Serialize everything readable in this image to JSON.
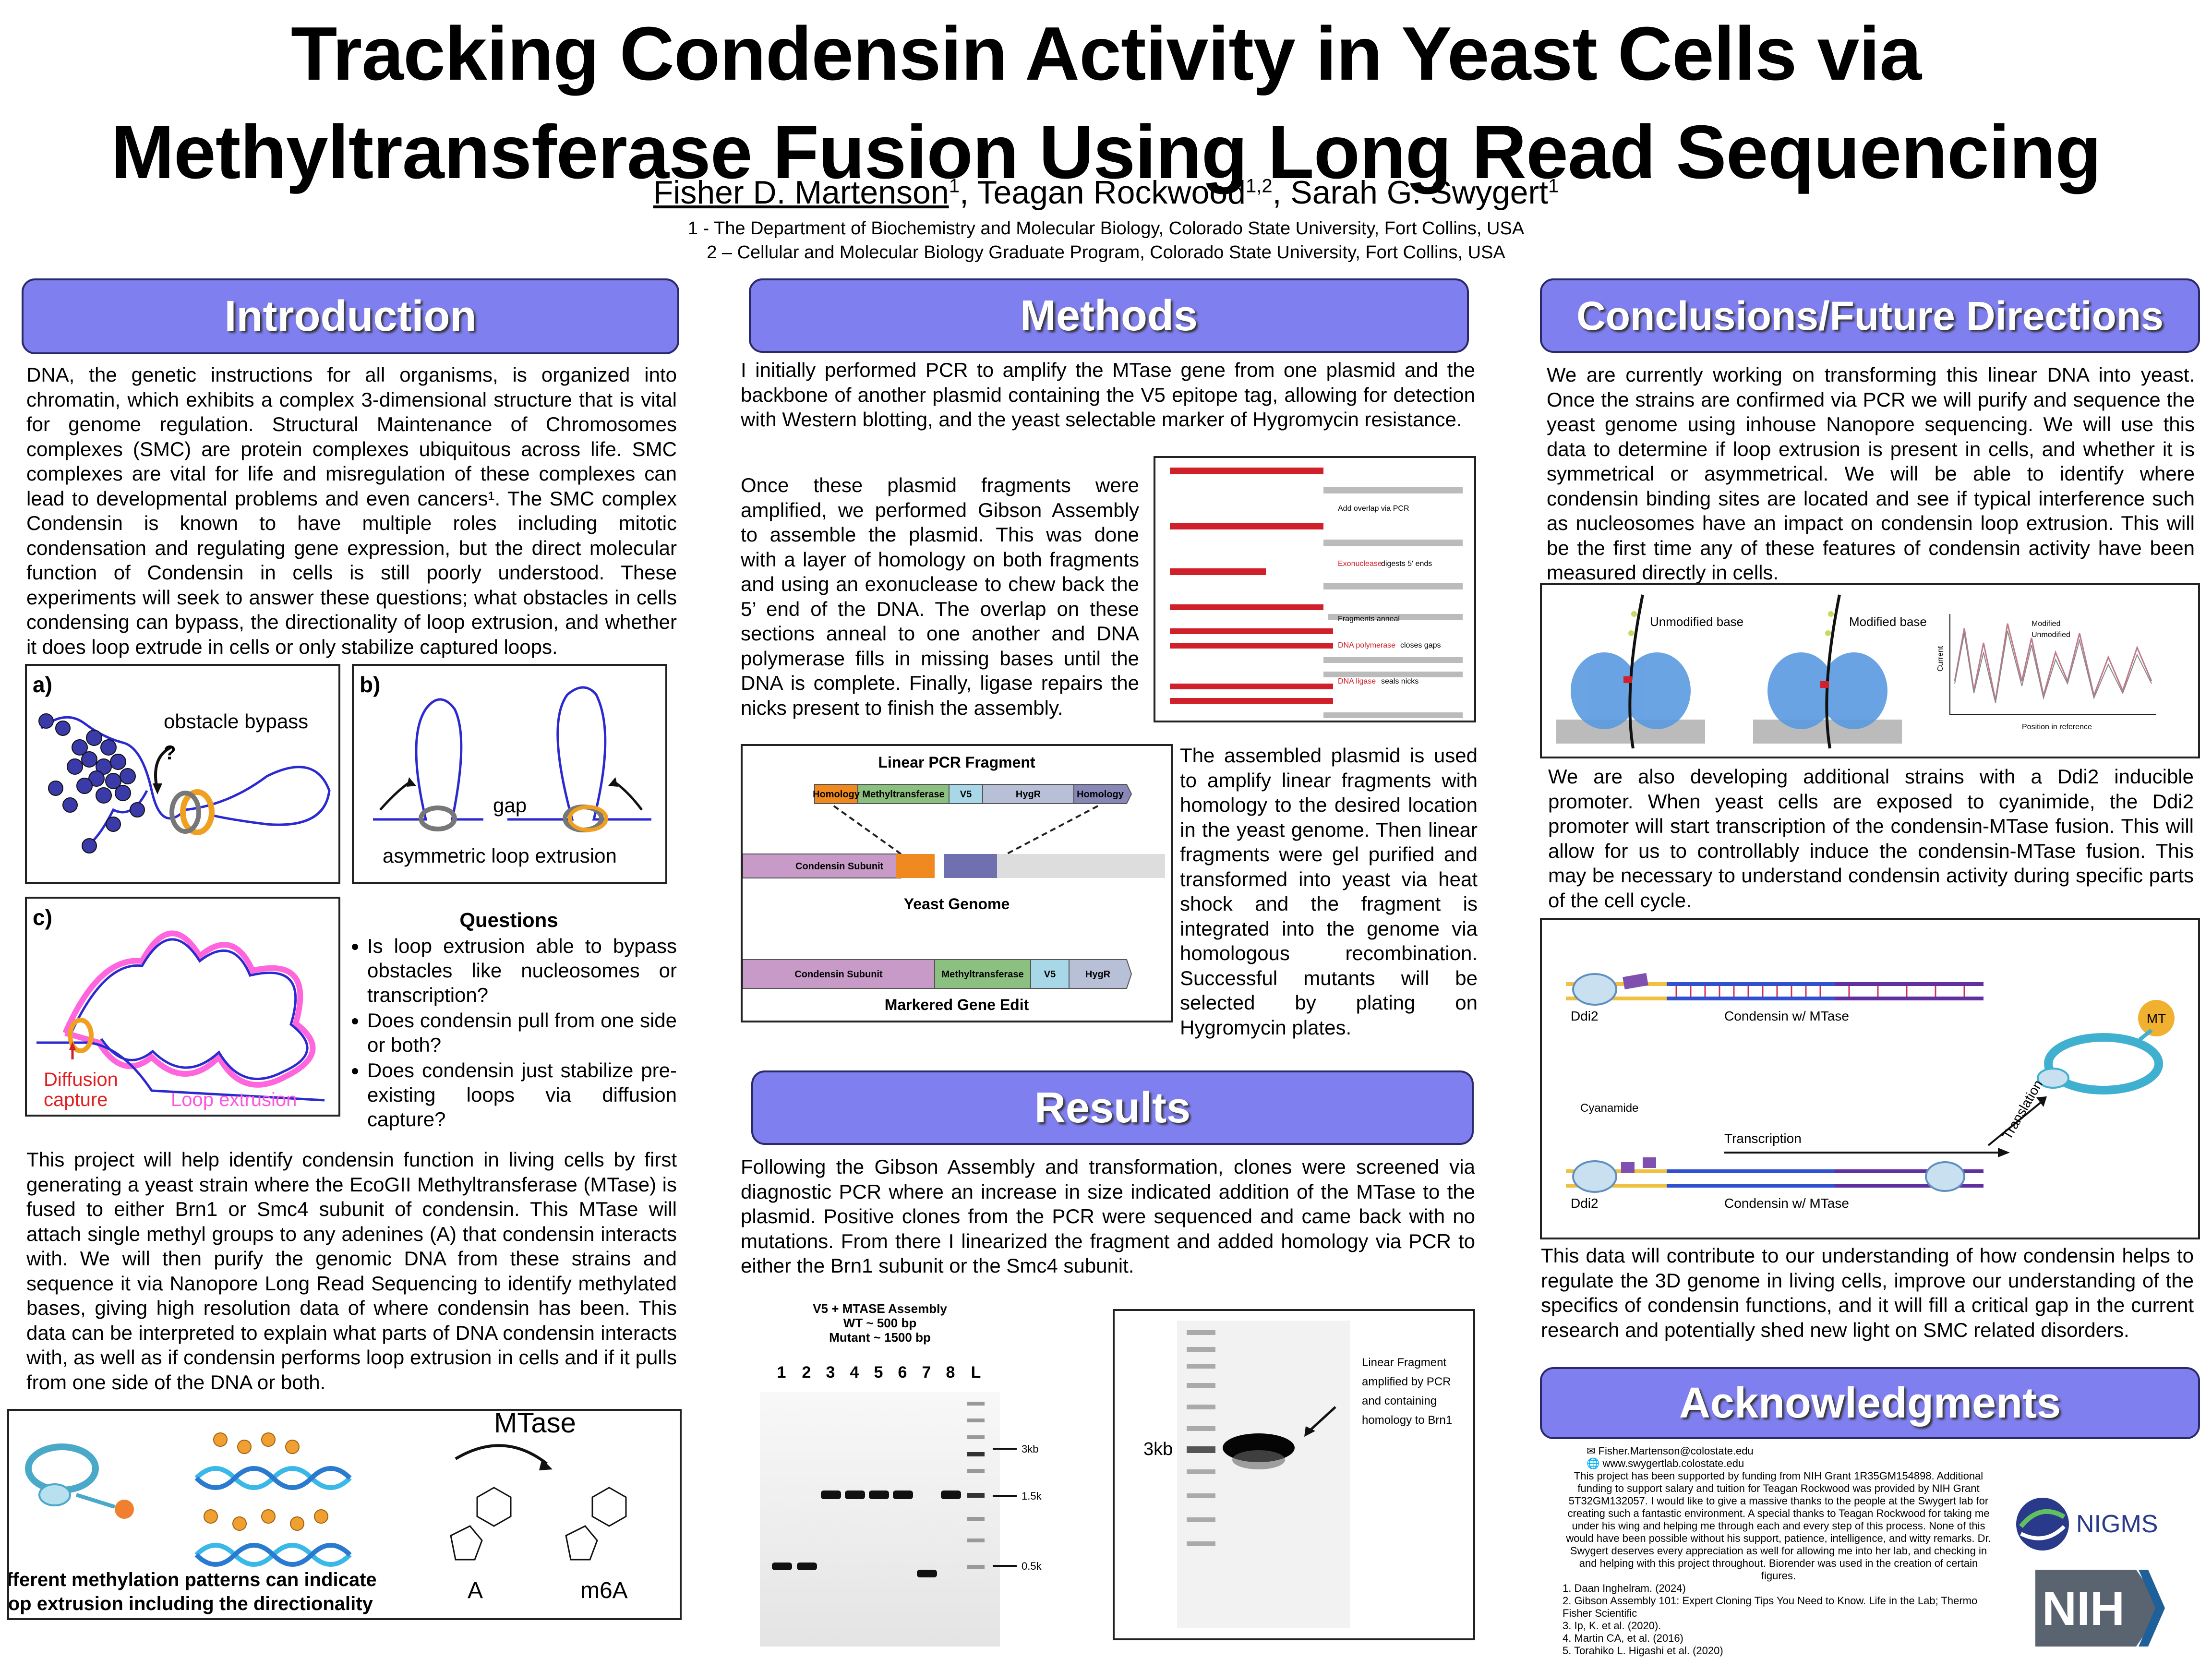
{
  "title_line1": "Tracking Condensin Activity in Yeast Cells via",
  "title_line2": "Methyltransferase Fusion Using Long Read Sequencing",
  "authors": {
    "a1": "Fisher D. Martenson",
    "a1_sup": "1",
    "a2": ", Teagan Rockwood",
    "a2_sup": "1,2",
    "a3": ", Sarah G. Swygert",
    "a3_sup": "1"
  },
  "affil1": "1 - The Department of Biochemistry and Molecular Biology, Colorado State University, Fort Collins, USA",
  "affil2": "2 – Cellular and Molecular Biology Graduate Program, Colorado State University, Fort Collins, USA",
  "intro": {
    "heading": "Introduction",
    "p1": "DNA, the genetic instructions for all organisms, is organized into chromatin, which exhibits a complex 3-dimensional structure that is vital for genome regulation. Structural Maintenance of Chromosomes complexes (SMC) are protein complexes ubiquitous across life. SMC complexes are vital for life and misregulation of these complexes can lead to developmental problems and even cancers¹. The SMC complex Condensin is known to have multiple roles including mitotic condensation and regulating gene expression, but the direct molecular function of Condensin in cells is still poorly understood. These experiments will seek to answer these questions; what obstacles in cells condensing can bypass, the directionality of loop extrusion, and whether it does loop extrude in cells or only stabilize captured loops.",
    "fig_a_label": "a)",
    "fig_a_text": "obstacle bypass",
    "fig_a_q": "?",
    "fig_b_label": "b)",
    "fig_b_gap": "gap",
    "fig_b_text": "asymmetric loop extrusion",
    "fig_c_label": "c)",
    "fig_c_diff1": "Diffusion",
    "fig_c_diff2": "capture",
    "fig_c_loop": "Loop extrusion",
    "questions_title": "Questions",
    "questions": [
      "Is loop extrusion able to bypass obstacles like nucleosomes or transcription?",
      "Does condensin pull from one side or both?",
      "Does condensin just stabilize pre-existing loops via diffusion capture?"
    ],
    "p2": "This project will help identify condensin function in living cells by first generating a yeast strain where the EcoGII Methyltransferase (MTase) is fused to either Brn1 or Smc4 subunit of condensin. This MTase will attach single methyl groups to any adenines (A) that condensin interacts with. We will then purify the genomic DNA from these strains and sequence it via Nanopore Long Read Sequencing to identify methylated bases, giving high resolution data of where condensin has been. This data can be interpreted to explain what parts of DNA condensin interacts with, as well as if condensin performs loop extrusion in cells and if it pulls from one side of the DNA or both.",
    "mtase_label": "MTase",
    "mtase_A": "A",
    "mtase_m6A": "m6A",
    "mtase_caption1": "Different methylation patterns can indicate",
    "mtase_caption2": "loop extrusion including the directionality"
  },
  "methods": {
    "heading": "Methods",
    "p1": "I initially performed PCR to amplify the MTase gene from one plasmid and the backbone of another plasmid containing the V5 epitope tag, allowing for detection with Western blotting, and the yeast selectable marker of Hygromycin resistance.",
    "p2": "Once these plasmid fragments were amplified, we performed Gibson Assembly to assemble the plasmid. This was done with a layer of homology on both fragments and using an exonuclease to chew back the 5’ end of the DNA. The overlap on these sections anneal to one another and DNA polymerase fills in missing bases until the DNA is complete. Finally, ligase repairs the nicks present to finish the assembly.",
    "gibson": {
      "s1": "Add overlap via PCR",
      "s2": "Exonuclease",
      "s2b": "digests 5' ends",
      "s3": "Fragments anneal",
      "s4": "DNA polymerase",
      "s4b": "closes gaps",
      "s5": "DNA ligase",
      "s5b": "seals nicks",
      "p5": "5'",
      "p3": "3'"
    },
    "linear_title": "Linear PCR Fragment",
    "seg_homology": "Homology",
    "seg_mt": "Methyltransferase",
    "seg_v5": "V5",
    "seg_hygr": "HygR",
    "seg_condensin": "Condensin Subunit",
    "yeast_genome": "Yeast Genome",
    "markered": "Markered Gene Edit",
    "p3": "The assembled plasmid is used to amplify linear fragments with homology to the desired location in the yeast genome. Then linear fragments were gel purified and transformed into yeast via heat shock and the fragment is integrated into the genome via homologous recombination. Successful mutants will be selected by plating on Hygromycin plates."
  },
  "results": {
    "heading": "Results",
    "p1": "Following the Gibson Assembly and transformation, clones were screened via diagnostic PCR where an increase in size indicated addition of the MTase to the plasmid. Positive clones from the PCR were sequenced and came back with no mutations. From there I linearized the fragment and added homology via PCR to either the Brn1 subunit or the Smc4 subunit.",
    "gel1_title1": "V5 + MTASE Assembly",
    "gel1_title2": "WT ~ 500 bp",
    "gel1_title3": "Mutant ~ 1500 bp",
    "lanes": [
      "1",
      "2",
      "3",
      "4",
      "5",
      "6",
      "7",
      "8",
      "L"
    ],
    "marker_3kb": "3kb",
    "marker_15k": "1.5k",
    "marker_05k": "0.5k",
    "gel2_3kb": "3kb",
    "gel2_note": [
      "Linear Fragment",
      "amplified by PCR",
      "and containing",
      "homology to Brn1"
    ]
  },
  "conclusions": {
    "heading": "Conclusions/Future Directions",
    "p1": "We are currently working on transforming this linear DNA into yeast. Once the strains are confirmed via PCR we will purify and sequence the yeast genome using inhouse Nanopore sequencing. We will use this data to determine if loop extrusion is present in cells, and whether it is symmetrical or asymmetrical. We will be able to identify where condensin binding sites are located and see if typical interference such as nucleosomes have an impact on condensin loop extrusion. This will be the first time any of these features of condensin activity have been measured directly in cells.",
    "nano_unmod": "Unmodified base",
    "nano_mod": "Modified base",
    "nano_leg1": "Modified",
    "nano_leg2": "Unmodified",
    "nano_y": "Current",
    "nano_x": "Position in reference",
    "p2": "We are also developing additional strains with a Ddi2 inducible promoter. When yeast cells are exposed to cyanimide, the Ddi2 promoter will start transcription of the condensin-MTase fusion. This will allow for us to controllably induce the condensin-MTase fusion. This may be necessary to understand condensin activity during specific parts of the cell cycle.",
    "ddi2": "Ddi2",
    "condensin_mt": "Condensin w/ MTase",
    "mt": "MT",
    "cyanamide": "Cyanamide",
    "transcription": "Transcription",
    "translation": "Translation",
    "p3": "This data will contribute to our understanding of how condensin helps to regulate the 3D genome in living cells, improve our understanding of the specifics of condensin functions, and it will fill a critical gap in the current research and potentially shed new light on SMC related disorders."
  },
  "ack": {
    "heading": "Acknowledgments",
    "email": "Fisher.Martenson@colostate.edu",
    "web": "www.swygertlab.colostate.edu",
    "text": "This project has been supported by funding from NIH Grant 1R35GM154898. Additional funding to support salary and tuition for Teagan Rockwood was provided by NIH Grant 5T32GM132057. I would like to give a massive thanks to the people at the Swygert lab for creating such a fantastic environment. A special thanks to Teagan Rockwood for taking me under his wing and helping me through each and every step of this process. None of this would have been possible without his support, patience, intelligence, and witty remarks. Dr. Swygert deserves every appreciation as well for allowing me into her lab, and checking in and helping with this project throughout. Biorender was used in the creation of certain figures.",
    "refs": [
      "1. Daan Inghelram. (2024)",
      "2. Gibson Assembly 101: Expert Cloning Tips You Need to Know. Life in the Lab; Thermo Fisher Scientific",
      "3. Ip, K. et al. (2020).",
      "4. Martin CA, et al. (2016)",
      "5. Torahiko L. Higashi et al. (2020)"
    ],
    "nigms": "NIGMS",
    "nih": "NIH"
  },
  "colors": {
    "banner": "#7f7ff0",
    "red": "#d0202a",
    "blue": "#3a3ad8",
    "orange": "#f0a020",
    "pink": "#ff66dd"
  }
}
